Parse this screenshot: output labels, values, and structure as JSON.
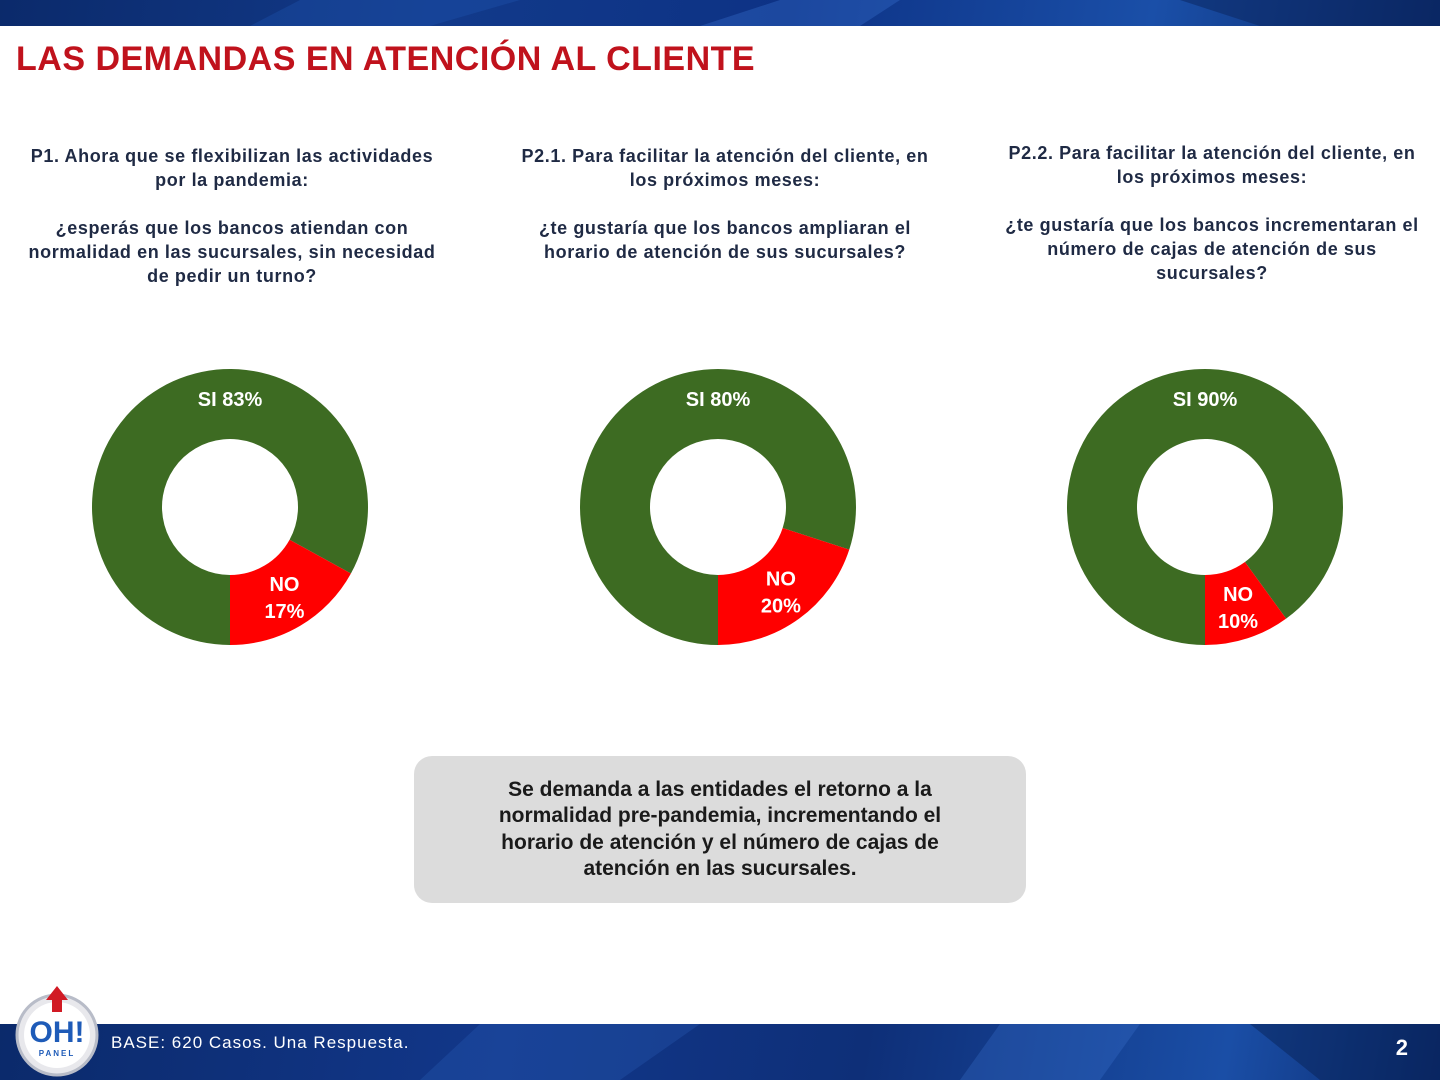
{
  "page": {
    "title": "LAS DEMANDAS EN ATENCIÓN AL CLIENTE",
    "page_number": "2",
    "footer_base": "BASE: 620 Casos. Una Respuesta.",
    "logo_text": "OH!",
    "logo_subtext": "PANEL"
  },
  "questions": [
    {
      "lead": "P1. Ahora que se flexibilizan las actividades por la pandemia:",
      "text": "¿esperás que los bancos atiendan con normalidad en las sucursales, sin necesidad de pedir un turno?"
    },
    {
      "lead": "P2.1. Para facilitar la atención del cliente, en los próximos meses:",
      "text": "¿te gustaría que los bancos ampliaran el horario de atención de sus sucursales?"
    },
    {
      "lead": "P2.2. Para facilitar la atención del cliente, en los próximos meses:",
      "text": "¿te gustaría que los bancos incrementaran el número de cajas de atención de sus sucursales?"
    }
  ],
  "summary": "Se demanda a las entidades el retorno a la normalidad pre-pandemia, incrementando el horario de atención y el número de cajas de atención en las sucursales.",
  "colors": {
    "si": "#3d6b22",
    "no": "#ff0000",
    "title": "#c0121c",
    "band": "#0d2f78"
  },
  "chart_data": [
    {
      "type": "pie",
      "donut": true,
      "title": "P1",
      "categories": [
        "SI",
        "NO"
      ],
      "values": [
        83,
        17
      ],
      "labels": [
        "SI 83%",
        "NO 17%"
      ]
    },
    {
      "type": "pie",
      "donut": true,
      "title": "P2.1",
      "categories": [
        "SI",
        "NO"
      ],
      "values": [
        80,
        20
      ],
      "labels": [
        "SI 80%",
        "NO 20%"
      ]
    },
    {
      "type": "pie",
      "donut": true,
      "title": "P2.2",
      "categories": [
        "SI",
        "NO"
      ],
      "values": [
        90,
        10
      ],
      "labels": [
        "SI 90%",
        "NO 10%"
      ]
    }
  ]
}
